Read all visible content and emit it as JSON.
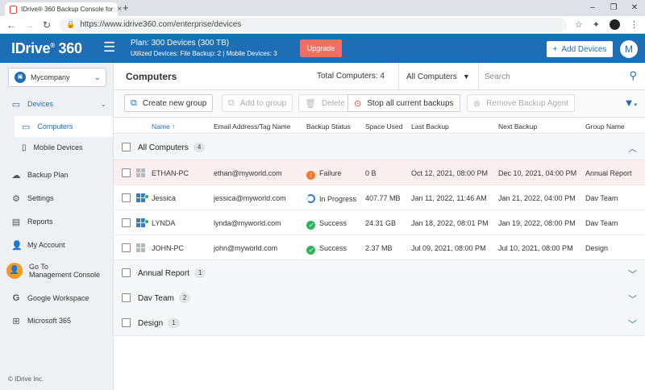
{
  "browser": {
    "tab_title": "IDrive® 360 Backup Console for",
    "url": "https://www.idrive360.com/enterprise/devices",
    "new_tab": "+",
    "minimize": "–",
    "restore": "❐",
    "close": "✕"
  },
  "header": {
    "logo_text": "IDrive",
    "logo_mark": "®",
    "logo_suffix": " 360",
    "plan_line1": "Plan: 300 Devices (300 TB)",
    "plan_line2": "Utilized Devices: File Backup: 2 | Mobile Devices: 3",
    "upgrade_label": "Upgrade",
    "add_devices_label": "Add Devices",
    "avatar_letter": "M"
  },
  "sidebar": {
    "company": "Mycompany",
    "devices": "Devices",
    "computers": "Computers",
    "mobile_devices": "Mobile Devices",
    "backup_plan": "Backup Plan",
    "settings": "Settings",
    "reports": "Reports",
    "my_account": "My Account",
    "go_to_line1": "Go To",
    "go_to_line2": "Management Console",
    "google_workspace": "Google Workspace",
    "microsoft_365": "Microsoft 365",
    "copyright": "© IDrive Inc."
  },
  "main": {
    "title": "Computers",
    "total": "Total Computers: 4",
    "filter_value": "All Computers",
    "search_placeholder": "Search",
    "toolbar": {
      "create_group": "Create new group",
      "add_to_group": "Add to group",
      "delete": "Delete",
      "stop_backups": "Stop all current backups",
      "remove_agent": "Remove Backup Agent"
    },
    "columns": {
      "name": "Name",
      "email": "Email Address/Tag Name",
      "status": "Backup Status",
      "space": "Space Used",
      "last": "Last Backup",
      "next": "Next Backup",
      "group": "Group Name"
    },
    "groups": [
      {
        "name": "All Computers",
        "count": "4"
      },
      {
        "name": "Annual Report",
        "count": "1"
      },
      {
        "name": "Dav Team",
        "count": "2"
      },
      {
        "name": "Design",
        "count": "1"
      }
    ],
    "rows": [
      {
        "name": "ETHAN-PC",
        "email": "ethan@myworld.com",
        "status": "Failure",
        "space": "0 B",
        "last": "Oct 12, 2021, 08:00 PM",
        "next": "Dec 10, 2021, 04:00 PM",
        "group": "Annual Report"
      },
      {
        "name": "Jessica",
        "email": "jessica@myworld.com",
        "status": "In Progress",
        "space": "407.77 MB",
        "last": "Jan 11, 2022, 11:46 AM",
        "next": "Jan 21, 2022, 04:00 PM",
        "group": "Dav Team"
      },
      {
        "name": "LYNDA",
        "email": "lynda@myworld.com",
        "status": "Success",
        "space": "24.31 GB",
        "last": "Jan 18, 2022, 08:01 PM",
        "next": "Jan 19, 2022, 08:00 PM",
        "group": "Dav Team"
      },
      {
        "name": "JOHN-PC",
        "email": "john@myworld.com",
        "status": "Success",
        "space": "2.37 MB",
        "last": "Jul 09, 2021, 08:00 PM",
        "next": "Jul 10, 2021, 08:00 PM",
        "group": "Design"
      }
    ]
  },
  "colors": {
    "brand": "#1d6eb5",
    "upgrade": "#ee6f66",
    "failure": "#f07a35",
    "success": "#2fb45c"
  }
}
